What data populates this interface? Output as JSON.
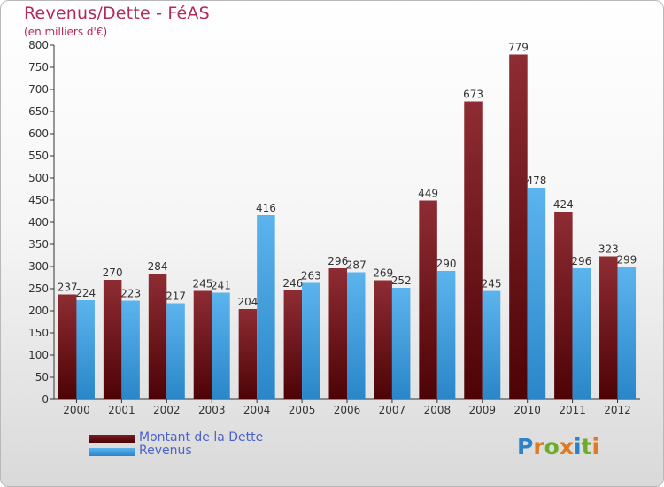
{
  "header": {
    "title": "Revenus/Dette - FéAS",
    "subtitle": "(en milliers d'€)"
  },
  "logo": {
    "chars": [
      "P",
      "r",
      "o",
      "x",
      "i",
      "t",
      "i"
    ]
  },
  "colors": {
    "dette": "#6a0a10",
    "revenus": "#3a9ee2",
    "title": "#b5285a",
    "legend_text": "#4b63c8",
    "logo": [
      "#2a82c8",
      "#e0791f",
      "#6dab2c",
      "#e0791f",
      "#2a82c8",
      "#6dab2c",
      "#e0791f"
    ]
  },
  "chart_data": {
    "type": "bar",
    "categories": [
      "2000",
      "2001",
      "2002",
      "2003",
      "2004",
      "2005",
      "2006",
      "2007",
      "2008",
      "2009",
      "2010",
      "2011",
      "2012"
    ],
    "series": [
      {
        "name": "Montant de la Dette",
        "values": [
          237,
          270,
          284,
          245,
          204,
          246,
          296,
          269,
          449,
          673,
          779,
          424,
          323
        ]
      },
      {
        "name": "Revenus",
        "values": [
          224,
          223,
          217,
          241,
          416,
          263,
          287,
          252,
          290,
          245,
          478,
          296,
          299
        ]
      }
    ],
    "ylim": [
      0,
      800
    ],
    "yticks": [
      0,
      50,
      100,
      150,
      200,
      250,
      300,
      350,
      400,
      450,
      500,
      550,
      600,
      650,
      700,
      750,
      800
    ],
    "grid": false,
    "legend": "bottom-left"
  }
}
